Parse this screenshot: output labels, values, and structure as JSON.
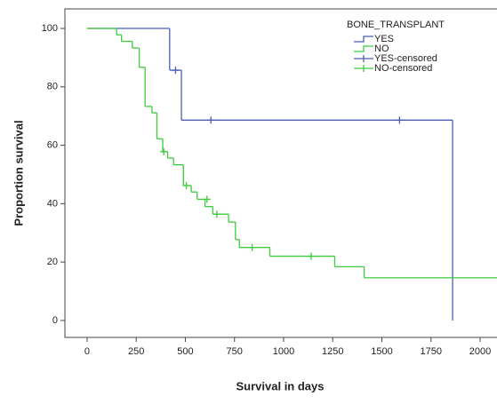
{
  "chart_data": {
    "type": "step",
    "legend_title": "BONE_TRANSPLANT",
    "x_label": "Survival  in days",
    "y_label": "Proportion survival",
    "xlim": [
      -113,
      2086
    ],
    "ylim": [
      -5.8,
      106.7
    ],
    "xticks": [
      0,
      250,
      500,
      750,
      1000,
      1250,
      1500,
      1750,
      2000
    ],
    "yticks": [
      0,
      20,
      40,
      60,
      80,
      100
    ],
    "series": [
      {
        "name": "YES",
        "color": "#4b5fb3",
        "x": [
          0,
          420,
          480,
          1860
        ],
        "values": [
          100,
          85.7,
          68.6,
          0
        ]
      },
      {
        "name": "NO",
        "color": "#3ccc3c",
        "x": [
          0,
          150,
          175,
          230,
          265,
          295,
          330,
          355,
          385,
          410,
          440,
          490,
          530,
          560,
          600,
          640,
          720,
          755,
          775,
          930,
          1260,
          1410,
          2100
        ],
        "values": [
          100,
          97.8,
          95.6,
          93.3,
          86.7,
          73.3,
          71.1,
          62.2,
          57.8,
          55.6,
          53.3,
          46.2,
          44,
          41.5,
          39,
          36.4,
          33.7,
          27.7,
          25,
          22,
          18.4,
          14.6,
          14.6
        ]
      }
    ],
    "censored": [
      {
        "name": "YES-censored",
        "color": "#4b5fb3",
        "x": [
          450,
          630,
          1590
        ],
        "values": [
          85.7,
          68.6,
          68.6
        ]
      },
      {
        "name": "NO-censored",
        "color": "#3ccc3c",
        "x": [
          390,
          505,
          610,
          660,
          840,
          1140
        ],
        "values": [
          57.8,
          46.2,
          41.5,
          36.4,
          25,
          22
        ]
      }
    ]
  }
}
